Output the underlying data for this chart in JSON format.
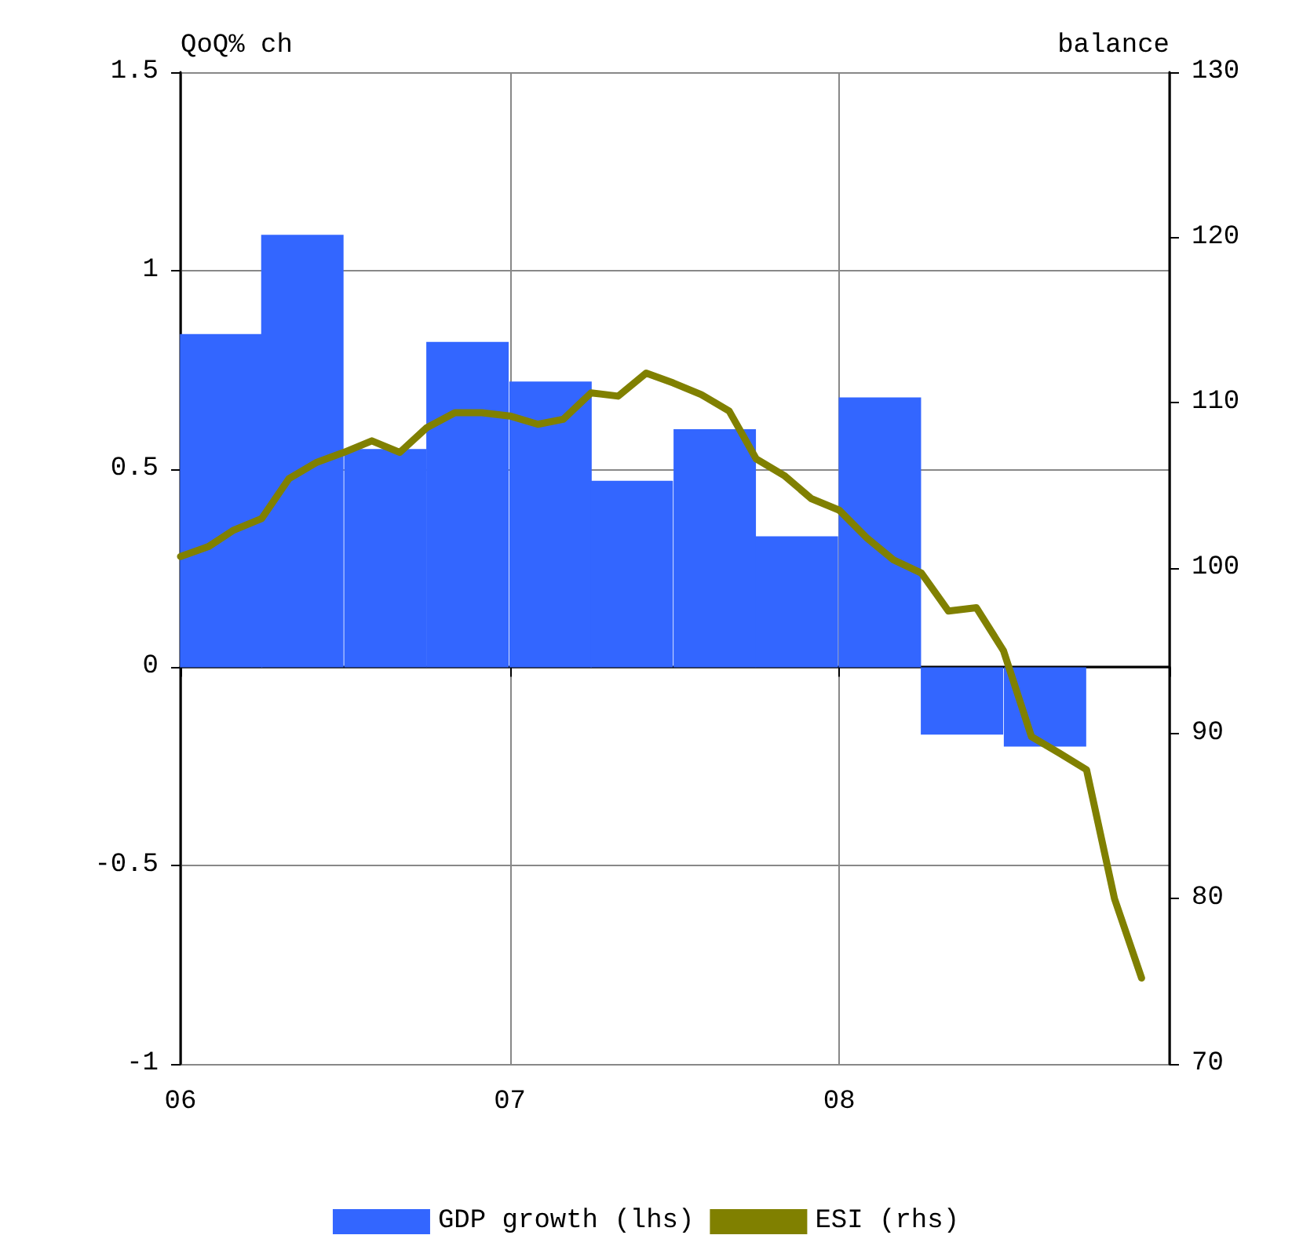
{
  "chart_data": {
    "type": "bar",
    "xlabel": null,
    "ylabel": "QoQ% ch",
    "y2label": "balance",
    "xlim": [
      "2006-01",
      "2009-01"
    ],
    "xticks": [
      {
        "value": "2006-01",
        "label": "06"
      },
      {
        "value": "2007-01",
        "label": "07"
      },
      {
        "value": "2008-01",
        "label": "08"
      },
      {
        "value": "2009-01",
        "label": null
      }
    ],
    "ylim": [
      -1,
      1.5
    ],
    "yticks": [
      -1,
      -0.5,
      0,
      0.5,
      1,
      1.5
    ],
    "y2lim": [
      70,
      130
    ],
    "y2ticks": [
      70,
      80,
      90,
      100,
      110,
      120,
      130
    ],
    "grid": true,
    "legend": "bottom",
    "series": [
      {
        "name": "GDP growth (lhs)",
        "color": "#3366ff",
        "x": [
          "2006-02-15",
          "2006-05-16",
          "2006-08-16",
          "2006-11-15",
          "2007-02-15",
          "2007-05-16",
          "2007-08-16",
          "2007-11-15",
          "2008-02-15",
          "2008-05-16",
          "2008-08-16"
        ],
        "values": [
          0.84,
          1.09,
          0.55,
          0.82,
          0.72,
          0.47,
          0.6,
          0.33,
          0.68,
          -0.17,
          -0.2
        ]
      },
      {
        "name": "ESI (rhs)",
        "type": "line",
        "axis": "y2",
        "color": "#808000",
        "marker": "none",
        "x": [
          "2006-01",
          "2006-02",
          "2006-03",
          "2006-04",
          "2006-05",
          "2006-06",
          "2006-07",
          "2006-08",
          "2006-09",
          "2006-10",
          "2006-11",
          "2006-12",
          "2007-01",
          "2007-02",
          "2007-03",
          "2007-04",
          "2007-05",
          "2007-06",
          "2007-07",
          "2007-08",
          "2007-09",
          "2007-10",
          "2007-11",
          "2007-12",
          "2008-01",
          "2008-02",
          "2008-03",
          "2008-04",
          "2008-05",
          "2008-06",
          "2008-07",
          "2008-08",
          "2008-09",
          "2008-10",
          "2008-11",
          "2008-12"
        ],
        "values": [
          100.7,
          101.3,
          102.3,
          103.0,
          105.4,
          106.4,
          107.0,
          107.7,
          107.0,
          108.5,
          109.4,
          109.4,
          109.2,
          108.7,
          109.0,
          110.6,
          110.4,
          111.8,
          111.2,
          110.5,
          109.5,
          106.6,
          105.6,
          104.2,
          103.5,
          101.8,
          100.5,
          99.7,
          97.4,
          97.6,
          95.0,
          89.8,
          88.8,
          87.8,
          80.0,
          75.2
        ]
      }
    ]
  }
}
